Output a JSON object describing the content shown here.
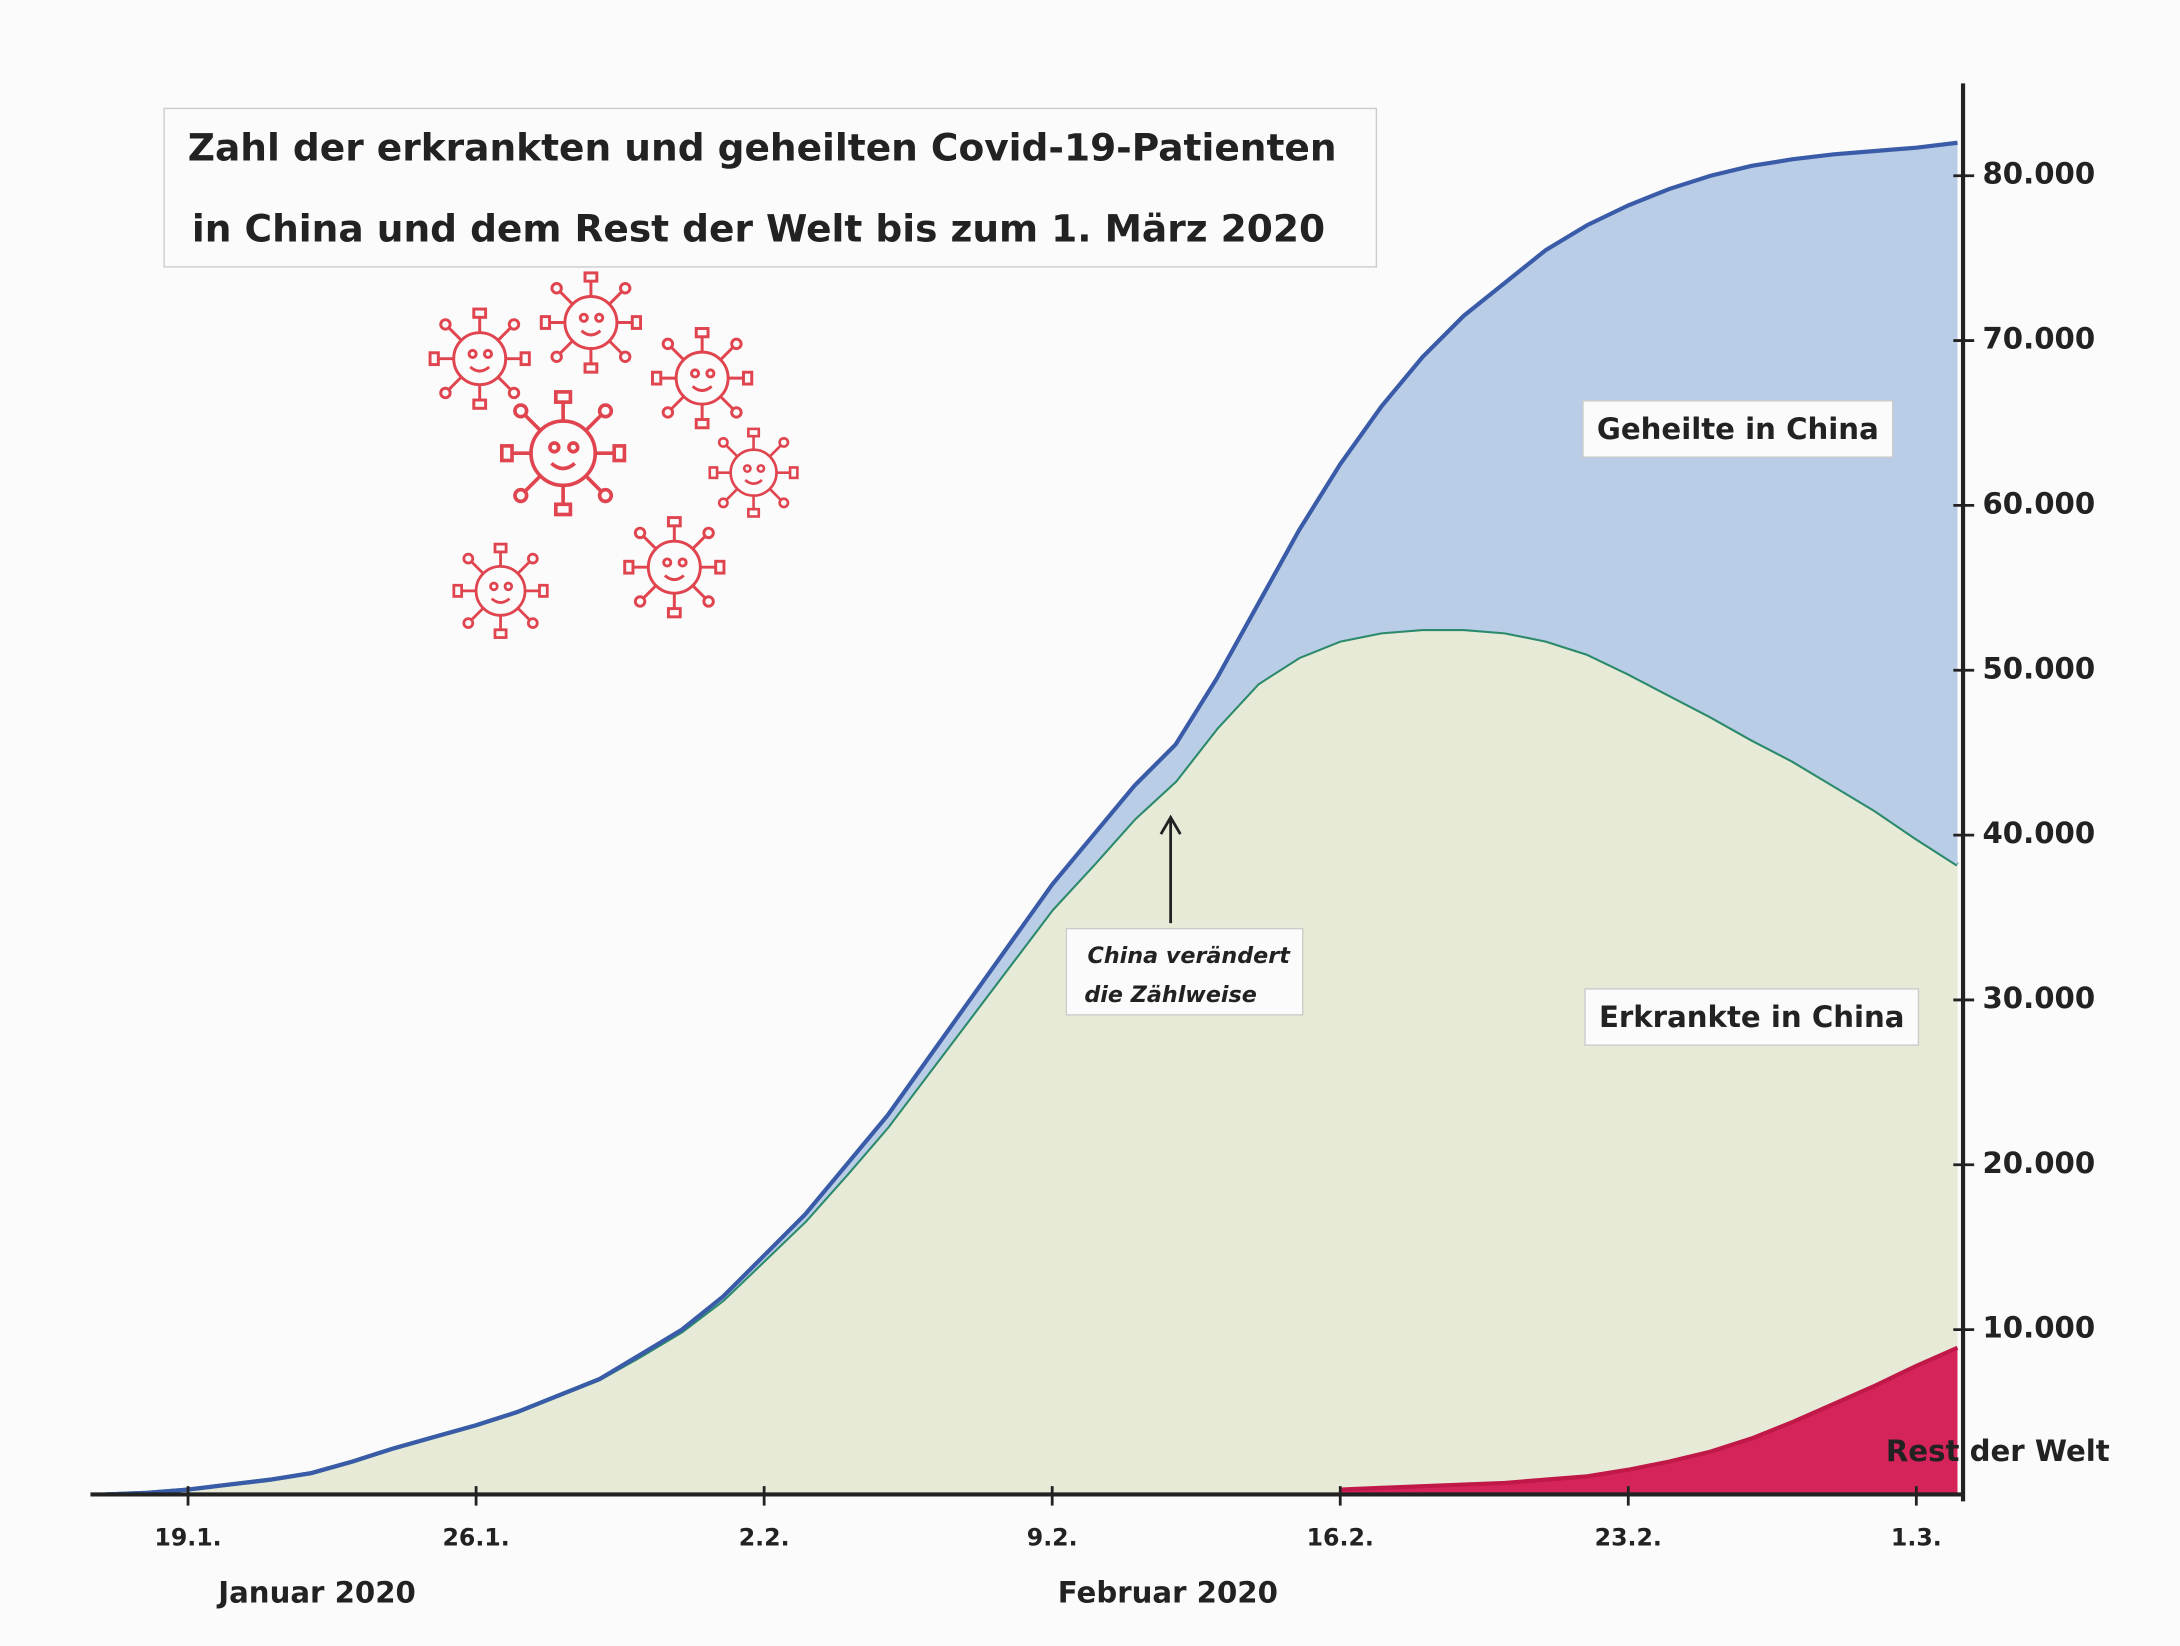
{
  "chart_data": {
    "type": "area",
    "title": [
      "Zahl der erkrankten und geheilten Covid-19-Patienten",
      "in China und dem Rest der Welt bis zum 1. März 2020"
    ],
    "categories": [
      null,
      null,
      "19.1.",
      null,
      null,
      null,
      null,
      null,
      null,
      "26.1.",
      null,
      null,
      null,
      null,
      null,
      null,
      "2.2.",
      null,
      null,
      null,
      null,
      null,
      null,
      "9.2.",
      null,
      null,
      null,
      null,
      null,
      null,
      "16.2.",
      null,
      null,
      null,
      null,
      null,
      null,
      "23.2.",
      null,
      null,
      null,
      null,
      null,
      null,
      "1.3.",
      null
    ],
    "month_labels": [
      "Januar 2020",
      "Februar 2020"
    ],
    "series": [
      {
        "name": "Erkrankte in China",
        "color": "#e6ead6",
        "line_color": "#2b8a6b",
        "values": [
          0,
          100,
          300,
          600,
          900,
          1300,
          2000,
          2800,
          3500,
          4200,
          5000,
          6000,
          7000,
          8400,
          9900,
          11800,
          14200,
          16600,
          19400,
          22300,
          25600,
          28900,
          32200,
          35500,
          38200,
          41000,
          43300,
          46500,
          49200,
          50800,
          51800,
          52300,
          52500,
          52500,
          52300,
          51800,
          51000,
          49800,
          48500,
          47200,
          45800,
          44500,
          43000,
          41500,
          39800,
          38200
        ]
      },
      {
        "name": "Geheilte in China",
        "color": "#b9cde6",
        "line_color": "#3a5ca8",
        "stacked": true,
        "values": [
          0,
          0,
          0,
          0,
          0,
          0,
          0,
          0,
          0,
          0,
          0,
          0,
          0,
          100,
          100,
          200,
          300,
          400,
          600,
          700,
          900,
          1100,
          1300,
          1500,
          1800,
          2000,
          2200,
          3000,
          4800,
          7700,
          10700,
          13700,
          16500,
          19000,
          21200,
          23700,
          26000,
          28400,
          30700,
          32800,
          34800,
          36500,
          38300,
          40000,
          41900,
          43800
        ]
      },
      {
        "name": "Rest der Welt",
        "color": "#d4245a",
        "line_color": "#c01848",
        "values": [
          null,
          null,
          null,
          null,
          null,
          null,
          null,
          null,
          null,
          null,
          null,
          null,
          null,
          null,
          null,
          null,
          null,
          null,
          null,
          null,
          null,
          null,
          null,
          null,
          null,
          null,
          null,
          null,
          null,
          null,
          300,
          400,
          500,
          600,
          700,
          900,
          1100,
          1500,
          2000,
          2600,
          3400,
          4400,
          5500,
          6600,
          7800,
          8900
        ]
      }
    ],
    "annotation": [
      "China verändert",
      "die Zählweise"
    ],
    "ylim": [
      0,
      85600
    ],
    "yticks": [
      {
        "value": 10000,
        "label": "10.000"
      },
      {
        "value": 20000,
        "label": "20.000"
      },
      {
        "value": 30000,
        "label": "30.000"
      },
      {
        "value": 40000,
        "label": "40.000"
      },
      {
        "value": 50000,
        "label": "50.000"
      },
      {
        "value": 60000,
        "label": "60.000"
      },
      {
        "value": 70000,
        "label": "70.000"
      },
      {
        "value": 80000,
        "label": "80.000"
      }
    ],
    "y_axis_side": "right",
    "grid": false
  }
}
